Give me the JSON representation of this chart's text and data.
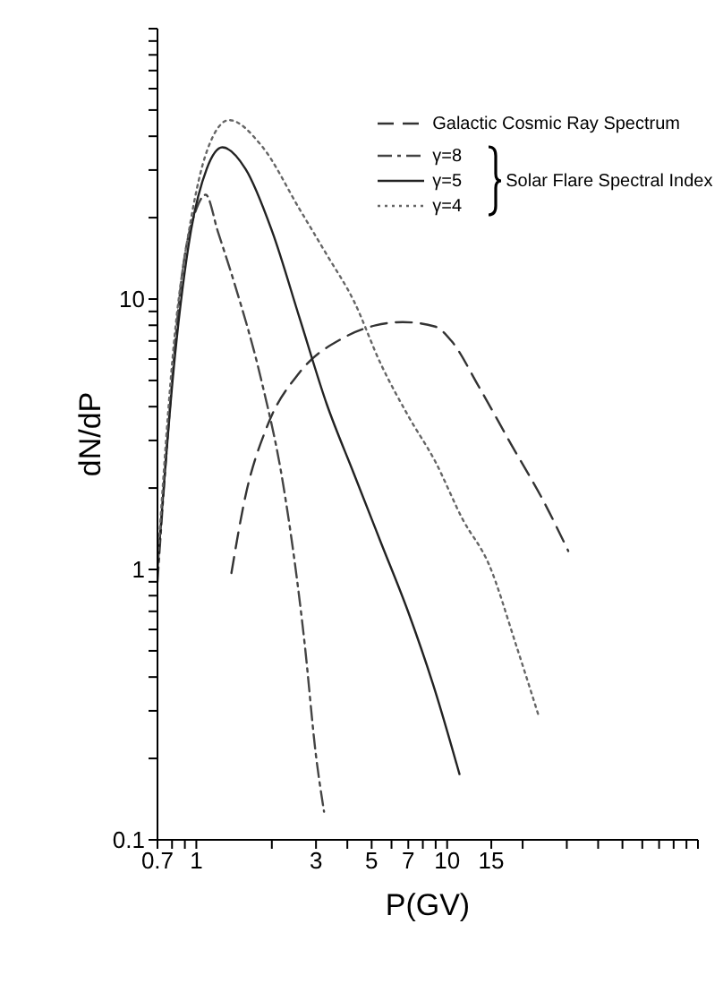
{
  "chart_data": {
    "type": "line",
    "xlabel": "P(GV)",
    "ylabel": "dN/dP",
    "log": "xy",
    "grid": false,
    "legend": "top right",
    "marker": "none",
    "xlim": [
      0.7,
      100
    ],
    "ylim": [
      0.1,
      100
    ],
    "xticks": [
      0.7,
      {
        "value": 0.8,
        "label": null
      },
      {
        "value": 0.9,
        "label": null
      },
      1,
      {
        "value": 2,
        "label": null
      },
      3,
      {
        "value": 4,
        "label": null
      },
      5,
      {
        "value": 6,
        "label": null
      },
      7,
      {
        "value": 8,
        "label": null
      },
      {
        "value": 9,
        "label": null
      },
      10,
      15,
      {
        "value": 20,
        "label": null
      },
      {
        "value": 30,
        "label": null
      },
      {
        "value": 40,
        "label": null
      },
      {
        "value": 50,
        "label": null
      },
      {
        "value": 60,
        "label": null
      },
      {
        "value": 70,
        "label": null
      },
      {
        "value": 80,
        "label": null
      },
      {
        "value": 90,
        "label": null
      },
      {
        "value": 100,
        "label": null
      }
    ],
    "yticks": [
      0.1,
      {
        "value": 0.2,
        "label": null
      },
      {
        "value": 0.3,
        "label": null
      },
      {
        "value": 0.4,
        "label": null
      },
      {
        "value": 0.5,
        "label": null
      },
      {
        "value": 0.6,
        "label": null
      },
      {
        "value": 0.7,
        "label": null
      },
      {
        "value": 0.8,
        "label": null
      },
      {
        "value": 0.9,
        "label": null
      },
      1,
      {
        "value": 2,
        "label": null
      },
      {
        "value": 3,
        "label": null
      },
      {
        "value": 4,
        "label": null
      },
      {
        "value": 5,
        "label": null
      },
      {
        "value": 6,
        "label": null
      },
      {
        "value": 7,
        "label": null
      },
      {
        "value": 8,
        "label": null
      },
      {
        "value": 9,
        "label": null
      },
      10,
      {
        "value": 20,
        "label": null
      },
      {
        "value": 30,
        "label": null
      },
      {
        "value": 40,
        "label": null
      },
      {
        "value": 50,
        "label": null
      },
      {
        "value": 60,
        "label": null
      },
      {
        "value": 70,
        "label": null
      },
      {
        "value": 80,
        "label": null
      },
      {
        "value": 90,
        "label": null
      },
      {
        "value": 100,
        "label": null
      }
    ],
    "annotations": [
      "Solar Flare Spectral Index"
    ],
    "series": [
      {
        "name": "Galactic Cosmic Ray Spectrum",
        "color": "#333333",
        "line_style": "dashed",
        "x": [
          1.38,
          1.57,
          1.91,
          2.58,
          3.84,
          5.18,
          6.65,
          8.96,
          10.4,
          13.4,
          18,
          24.3,
          30.4
        ],
        "values": [
          0.97,
          1.87,
          3.36,
          5.35,
          7.17,
          7.99,
          8.22,
          7.91,
          7,
          4.73,
          2.9,
          1.78,
          1.17
        ]
      },
      {
        "name": "γ=8",
        "color": "#444444",
        "line_style": "dashdot",
        "x": [
          0.7,
          0.78,
          0.88,
          1,
          1.09,
          1.22,
          1.42,
          1.82,
          2.22,
          2.71,
          2.99,
          3.23
        ],
        "values": [
          0.9,
          3.7,
          12.6,
          21.5,
          24.3,
          17.7,
          11.4,
          4.97,
          2.06,
          0.52,
          0.21,
          0.127
        ]
      },
      {
        "name": "γ=5",
        "color": "#222222",
        "line_style": "solid",
        "x": [
          0.7,
          0.82,
          0.95,
          1.1,
          1.27,
          1.57,
          2.01,
          2.58,
          3.31,
          4.24,
          5.44,
          6.98,
          8.96,
          11.2
        ],
        "values": [
          1,
          6.04,
          17.7,
          30.3,
          36.4,
          30.3,
          17.7,
          8.51,
          4.09,
          2.27,
          1.26,
          0.7,
          0.355,
          0.175
        ]
      },
      {
        "name": "γ=4",
        "color": "#666666",
        "line_style": "dotted",
        "x": [
          0.7,
          0.82,
          0.95,
          1.1,
          1.35,
          1.82,
          2.58,
          3.31,
          4.24,
          5.44,
          6.98,
          8.96,
          11.5,
          14.7,
          18.9,
          23.1
        ],
        "values": [
          1.04,
          7.35,
          19.5,
          35.1,
          45.9,
          36.9,
          21.5,
          14.6,
          9.86,
          5.75,
          3.71,
          2.51,
          1.54,
          1.04,
          0.52,
          0.29
        ]
      }
    ]
  }
}
